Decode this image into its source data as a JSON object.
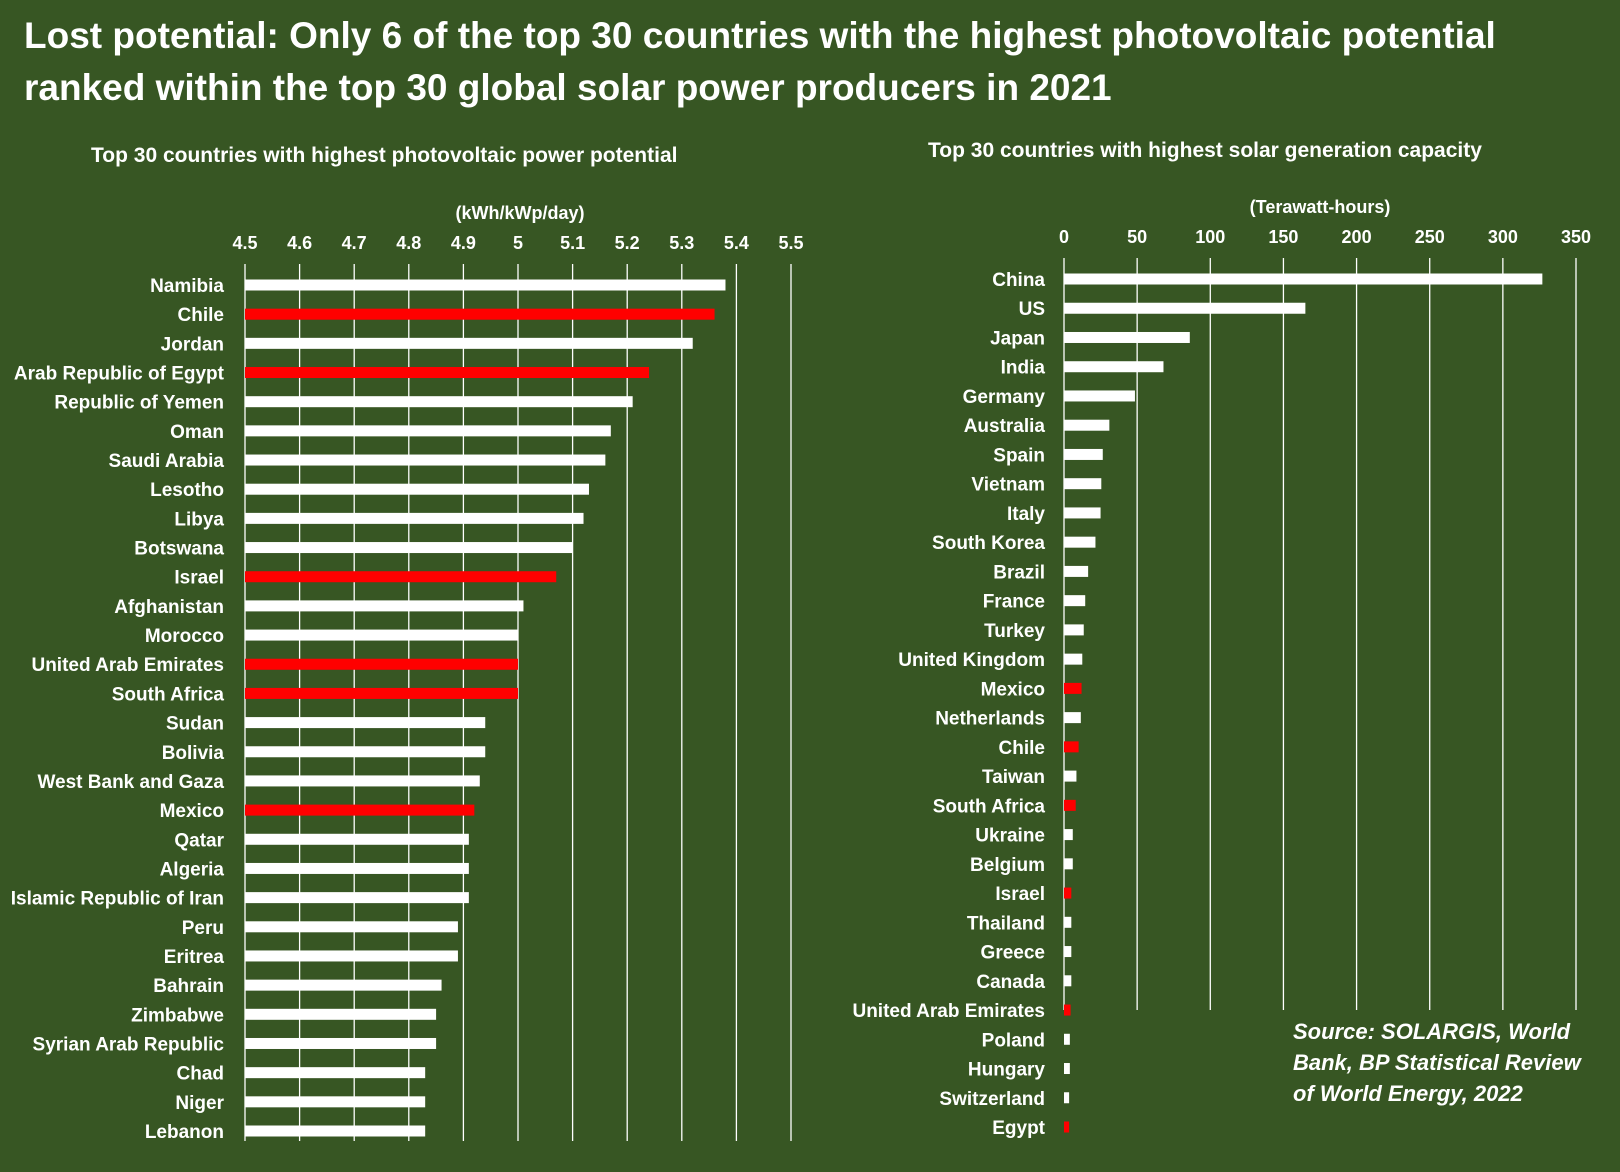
{
  "title": "Lost potential: Only 6 of the top 30 countries with the highest photovoltaic potential ranked within the top 30 global solar power producers in 2021",
  "source": "Source: SOLARGIS, World Bank, BP Statistical Review of World Energy, 2022",
  "colors": {
    "background": "#375623",
    "default_bar": "#ffffff",
    "highlight_bar": "#ff0000",
    "gridline": "#ffffff"
  },
  "chart_data": [
    {
      "type": "bar",
      "orientation": "horizontal",
      "title": "Top 30 countries with highest photovoltaic power potential",
      "xlabel": "(kWh/kWp/day)",
      "xlim": [
        4.5,
        5.5
      ],
      "xticks": [
        "4.5",
        "4.6",
        "4.7",
        "4.8",
        "4.9",
        "5",
        "5.1",
        "5.2",
        "5.3",
        "5.4",
        "5.5"
      ],
      "grid": true,
      "categories": [
        "Namibia",
        "Chile",
        "Jordan",
        "Arab Republic of Egypt",
        "Republic of Yemen",
        "Oman",
        "Saudi Arabia",
        "Lesotho",
        "Libya",
        "Botswana",
        "Israel",
        "Afghanistan",
        "Morocco",
        "United Arab Emirates",
        "South Africa",
        "Sudan",
        "Bolivia",
        "West Bank and Gaza",
        "Mexico",
        "Qatar",
        "Algeria",
        "Islamic Republic of Iran",
        "Peru",
        "Eritrea",
        "Bahrain",
        "Zimbabwe",
        "Syrian Arab Republic",
        "Chad",
        "Niger",
        "Lebanon"
      ],
      "values": [
        5.38,
        5.36,
        5.32,
        5.24,
        5.21,
        5.17,
        5.16,
        5.13,
        5.12,
        5.1,
        5.07,
        5.01,
        5.0,
        5.0,
        5.0,
        4.94,
        4.94,
        4.93,
        4.92,
        4.91,
        4.91,
        4.91,
        4.89,
        4.89,
        4.86,
        4.85,
        4.85,
        4.83,
        4.83,
        4.83
      ],
      "highlighted": [
        "Chile",
        "Arab Republic of Egypt",
        "Israel",
        "United Arab Emirates",
        "South Africa",
        "Mexico"
      ]
    },
    {
      "type": "bar",
      "orientation": "horizontal",
      "title": "Top 30 countries with highest solar generation capacity",
      "xlabel": "(Terawatt-hours)",
      "xlim": [
        0,
        350
      ],
      "xticks": [
        "0",
        "50",
        "100",
        "150",
        "200",
        "250",
        "300",
        "350"
      ],
      "grid": true,
      "categories": [
        "China",
        "US",
        "Japan",
        "India",
        "Germany",
        "Australia",
        "Spain",
        "Vietnam",
        "Italy",
        "South Korea",
        "Brazil",
        "France",
        "Turkey",
        "United Kingdom",
        "Mexico",
        "Netherlands",
        "Chile",
        "Taiwan",
        "South Africa",
        "Ukraine",
        "Belgium",
        "Israel",
        "Thailand",
        "Greece",
        "Canada",
        "United Arab Emirates",
        "Poland",
        "Hungary",
        "Switzerland",
        "Egypt"
      ],
      "values": [
        327,
        165,
        86,
        68,
        48.5,
        31,
        26.5,
        25.5,
        25,
        21.5,
        16.5,
        14.5,
        13.5,
        12.5,
        12,
        11.5,
        10,
        8.5,
        8,
        6,
        6,
        5,
        5,
        5,
        5,
        4.5,
        4,
        4,
        3.5,
        3.5
      ],
      "highlighted": [
        "Mexico",
        "Chile",
        "South Africa",
        "Israel",
        "United Arab Emirates",
        "Egypt"
      ]
    }
  ]
}
